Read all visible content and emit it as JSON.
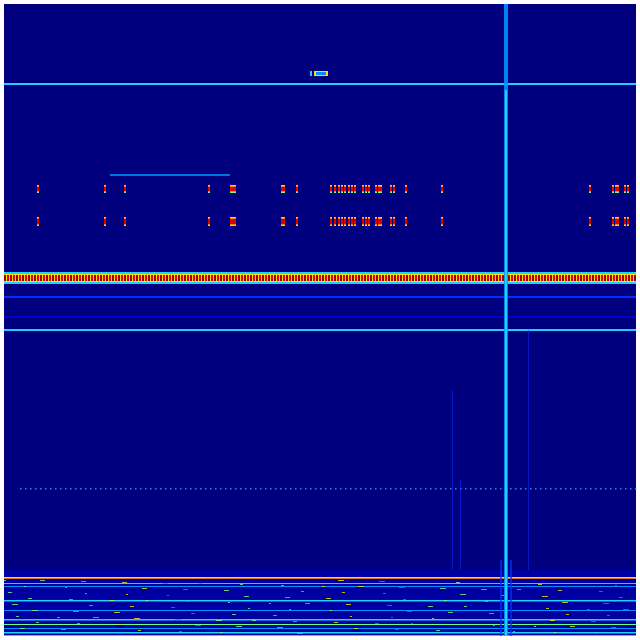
{
  "colors": {
    "background": "#00007f",
    "dark_blue": "#0000d0",
    "blue": "#0030ff",
    "light_blue": "#0090ff",
    "cyan": "#20d0ff",
    "green": "#70ff80",
    "yellow": "#ffe000",
    "orange": "#ff8000",
    "red": "#e00000",
    "dark_red": "#a00000",
    "border": "#ffffff"
  }
}
